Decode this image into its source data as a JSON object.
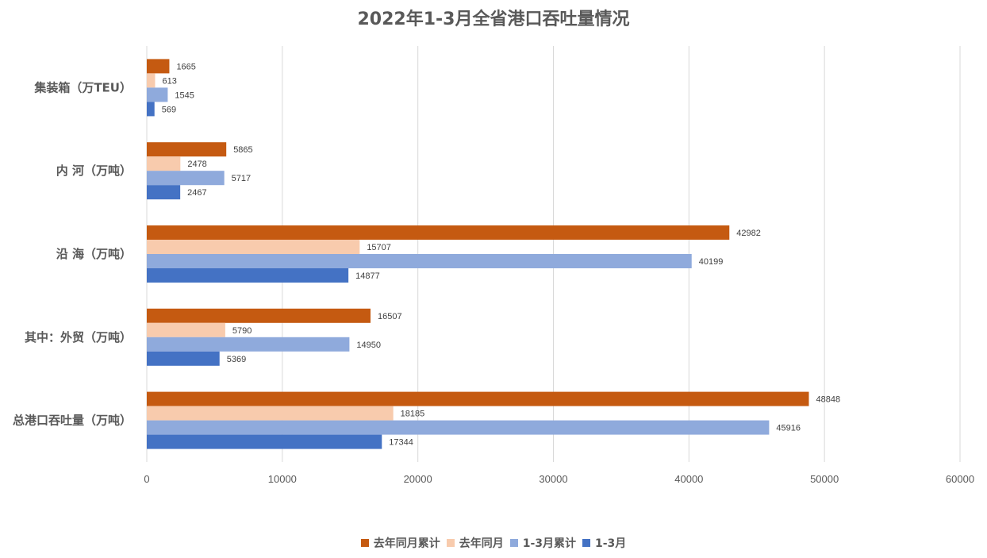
{
  "chart_data": {
    "type": "bar",
    "orientation": "horizontal",
    "title": "2022年1-3月全省港口吞吐量情况",
    "categories": [
      "集装箱（万TEU）",
      "内 河（万吨）",
      "沿 海（万吨）",
      "其中：外贸（万吨）",
      "总港口吞吐量（万吨）"
    ],
    "series": [
      {
        "name": "去年同月累计",
        "color": "#C55A11",
        "values": [
          1665,
          5865,
          42982,
          16507,
          48848
        ]
      },
      {
        "name": "去年同月",
        "color": "#F8CBAD",
        "values": [
          613,
          2478,
          15707,
          5790,
          18185
        ]
      },
      {
        "name": "1-3月累计",
        "color": "#8FAADC",
        "values": [
          1545,
          5717,
          40199,
          14950,
          45916
        ]
      },
      {
        "name": "1-3月",
        "color": "#4472C4",
        "values": [
          569,
          2467,
          14877,
          5369,
          17344
        ]
      }
    ],
    "xlim": [
      0,
      60000
    ],
    "xticks": [
      "0",
      "10000",
      "20000",
      "30000",
      "40000",
      "50000",
      "60000"
    ],
    "grid": true,
    "legend_position": "bottom"
  }
}
